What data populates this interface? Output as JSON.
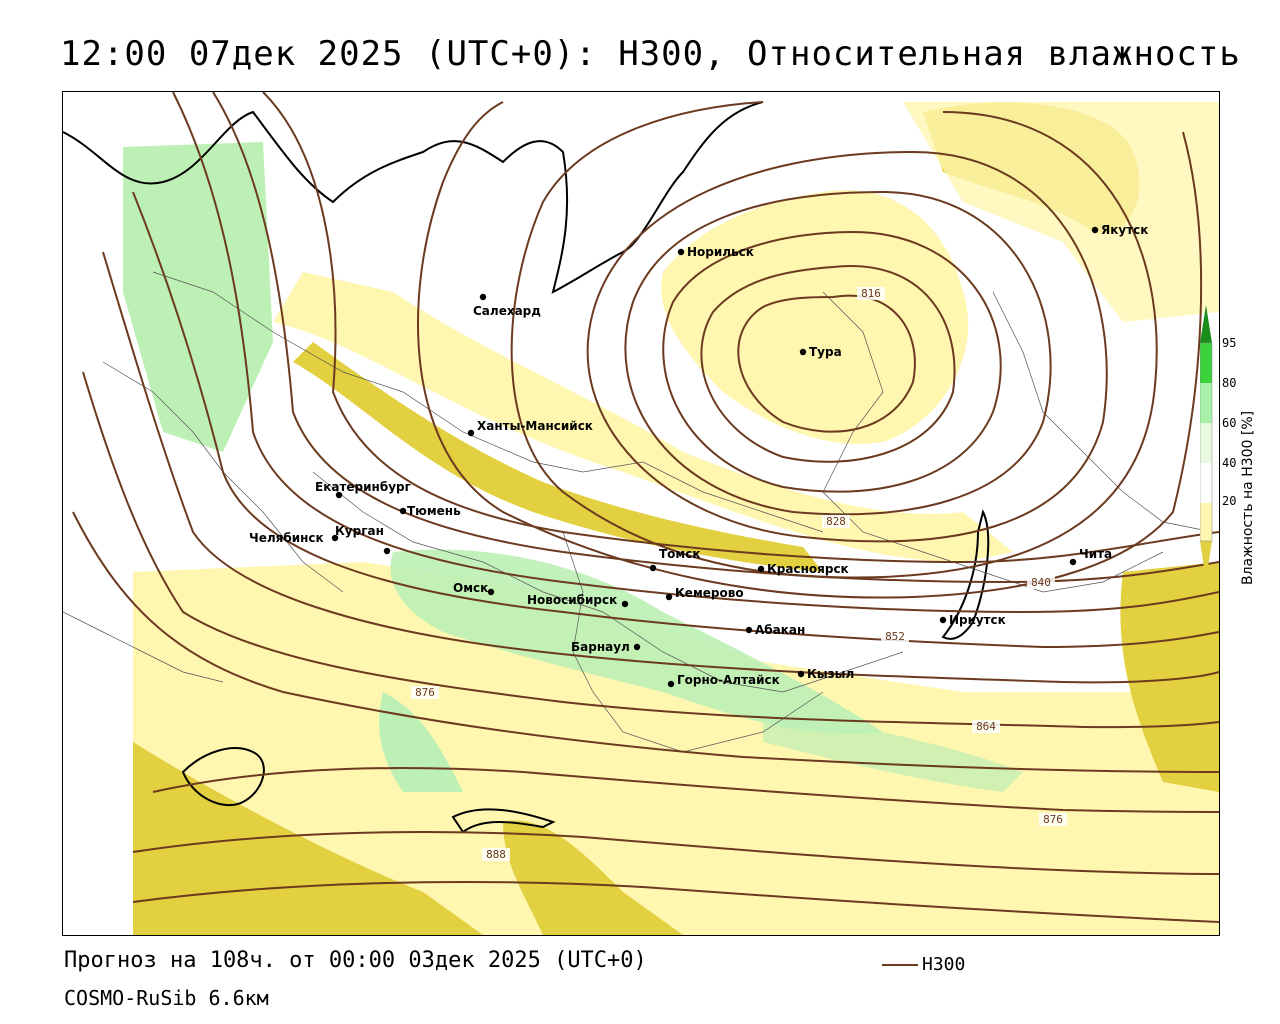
{
  "title": "12:00 07дек 2025 (UTC+0): H300, Относительная влажность",
  "footer": {
    "forecast": "Прогноз на 108ч. от 00:00 03дек 2025 (UTC+0)",
    "model": "COSMO-RuSib 6.6км",
    "line_legend": "H300"
  },
  "colorbar": {
    "title": "Влажность на H300 [%]",
    "ticks": [
      "95",
      "80",
      "60",
      "40",
      "20"
    ],
    "colors": [
      "#1a8c1a",
      "#3bd23b",
      "#a8f0a8",
      "#e8fbe0",
      "#ffffff",
      "#fff6b0",
      "#e2d040"
    ]
  },
  "cities": [
    {
      "name": "Норильск"
    },
    {
      "name": "Якутск"
    },
    {
      "name": "Салехард"
    },
    {
      "name": "Тура"
    },
    {
      "name": "Ханты-Мансийск"
    },
    {
      "name": "Екатеринбург"
    },
    {
      "name": "Тюмень"
    },
    {
      "name": "Челябинск"
    },
    {
      "name": "Курган"
    },
    {
      "name": "Томск"
    },
    {
      "name": "Красноярск"
    },
    {
      "name": "Чита"
    },
    {
      "name": "Омск"
    },
    {
      "name": "Новосибирск"
    },
    {
      "name": "Кемерово"
    },
    {
      "name": "Абакан"
    },
    {
      "name": "Иркутск"
    },
    {
      "name": "Барнаул"
    },
    {
      "name": "Кызыл"
    },
    {
      "name": "Горно-Алтайск"
    }
  ],
  "contour_labels": [
    "816",
    "828",
    "840",
    "852",
    "864",
    "876",
    "876",
    "888"
  ],
  "colors": {
    "contour": "#6b3a1f",
    "dry_light": "#fff6b0",
    "dry_dark": "#e2d040",
    "moist": "#a8f0a8"
  }
}
